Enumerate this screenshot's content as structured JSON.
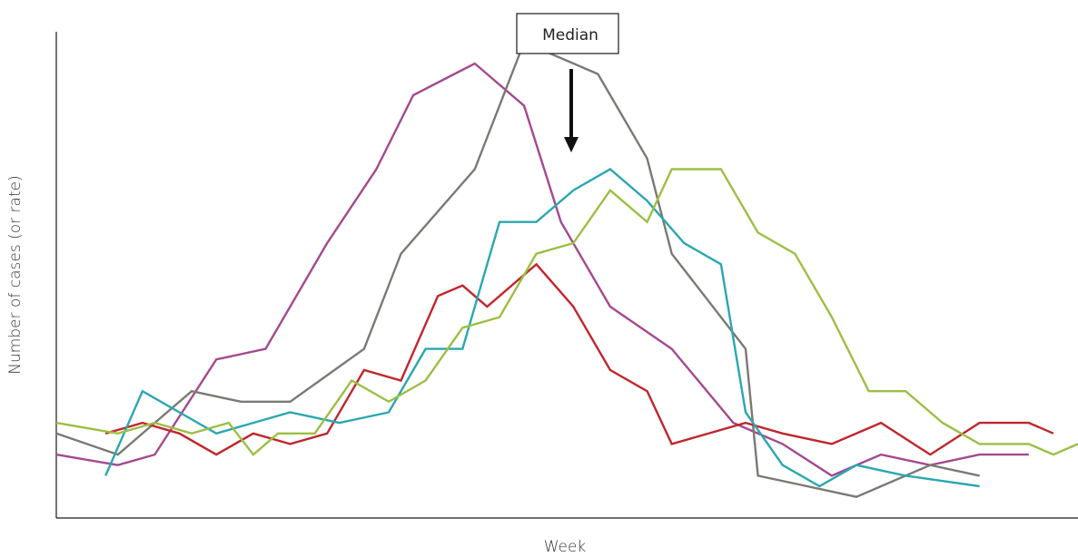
{
  "chart_data": {
    "type": "line",
    "title": "",
    "xlabel": "Week",
    "ylabel": "Number of cases (or rate)",
    "legend": "none",
    "grid": false,
    "x_ticks_shown": false,
    "y_ticks_shown": false,
    "ylim": [
      0,
      46
    ],
    "x": [
      1,
      2,
      3,
      4,
      5,
      6,
      7,
      8,
      9,
      10,
      11,
      12,
      13,
      14,
      15,
      16,
      17,
      18,
      19,
      20,
      21,
      22,
      23,
      24,
      25,
      26,
      27,
      28,
      29,
      30,
      31,
      32,
      33,
      34,
      35,
      36,
      37,
      38,
      39,
      40,
      41,
      42,
      43,
      44,
      45,
      46,
      47,
      48,
      49,
      50,
      51,
      52,
      53,
      54,
      55,
      56,
      57,
      58,
      59,
      60,
      61,
      62,
      63,
      64,
      65,
      66,
      67,
      68,
      69,
      70
    ],
    "annotations": [
      {
        "text": "Median",
        "points_to": {
          "series_index": 1,
          "x": 36
        }
      }
    ],
    "series": [
      {
        "color": "#a3498f",
        "points": [
          [
            1,
            6
          ],
          [
            6,
            5
          ],
          [
            9,
            6
          ],
          [
            14,
            15
          ],
          [
            18,
            16
          ],
          [
            23,
            26
          ],
          [
            27,
            33
          ],
          [
            30,
            40
          ],
          [
            35,
            43
          ],
          [
            39,
            39
          ],
          [
            42,
            28
          ],
          [
            46,
            20
          ],
          [
            51,
            16
          ],
          [
            56,
            9
          ],
          [
            60,
            7
          ],
          [
            64,
            4
          ],
          [
            68,
            6
          ],
          [
            72,
            5
          ],
          [
            76,
            6
          ],
          [
            80,
            6
          ]
        ]
      },
      {
        "color": "#7a7a72",
        "points": [
          [
            1,
            8
          ],
          [
            6,
            6
          ],
          [
            9,
            9
          ],
          [
            12,
            12
          ],
          [
            16,
            11
          ],
          [
            20,
            11
          ],
          [
            26,
            16
          ],
          [
            29,
            25
          ],
          [
            35,
            33
          ],
          [
            39,
            45
          ],
          [
            45,
            42
          ],
          [
            49,
            34
          ],
          [
            51,
            25
          ],
          [
            57,
            16
          ],
          [
            58,
            4
          ],
          [
            62,
            3
          ],
          [
            66,
            2
          ],
          [
            72,
            5
          ],
          [
            76,
            4
          ]
        ]
      },
      {
        "color": "#c0262c",
        "points": [
          [
            5,
            8
          ],
          [
            8,
            9
          ],
          [
            11,
            8
          ],
          [
            14,
            6
          ],
          [
            17,
            8
          ],
          [
            20,
            7
          ],
          [
            23,
            8
          ],
          [
            26,
            14
          ],
          [
            29,
            13
          ],
          [
            32,
            21
          ],
          [
            34,
            22
          ],
          [
            36,
            20
          ],
          [
            40,
            24
          ],
          [
            43,
            20
          ],
          [
            46,
            14
          ],
          [
            49,
            12
          ],
          [
            51,
            7
          ],
          [
            57,
            9
          ],
          [
            60,
            8
          ],
          [
            64,
            7
          ],
          [
            68,
            9
          ],
          [
            72,
            6
          ],
          [
            76,
            9
          ],
          [
            80,
            9
          ],
          [
            82,
            8
          ]
        ]
      },
      {
        "color": "#2aa7b1",
        "points": [
          [
            5,
            4
          ],
          [
            8,
            12
          ],
          [
            11,
            10
          ],
          [
            14,
            8
          ],
          [
            17,
            9
          ],
          [
            20,
            10
          ],
          [
            24,
            9
          ],
          [
            28,
            10
          ],
          [
            31,
            16
          ],
          [
            34,
            16
          ],
          [
            37,
            28
          ],
          [
            40,
            28
          ],
          [
            43,
            31
          ],
          [
            46,
            33
          ],
          [
            49,
            30
          ],
          [
            52,
            26
          ],
          [
            55,
            24
          ],
          [
            57,
            10
          ],
          [
            60,
            5
          ],
          [
            63,
            3
          ],
          [
            66,
            5
          ],
          [
            70,
            4
          ],
          [
            76,
            3
          ]
        ]
      },
      {
        "color": "#9cbf45",
        "points": [
          [
            1,
            9
          ],
          [
            6,
            8
          ],
          [
            9,
            9
          ],
          [
            12,
            8
          ],
          [
            15,
            9
          ],
          [
            17,
            6
          ],
          [
            19,
            8
          ],
          [
            22,
            8
          ],
          [
            25,
            13
          ],
          [
            28,
            11
          ],
          [
            31,
            13
          ],
          [
            34,
            18
          ],
          [
            37,
            19
          ],
          [
            40,
            25
          ],
          [
            43,
            26
          ],
          [
            46,
            31
          ],
          [
            49,
            28
          ],
          [
            51,
            33
          ],
          [
            55,
            33
          ],
          [
            58,
            27
          ],
          [
            61,
            25
          ],
          [
            64,
            19
          ],
          [
            67,
            12
          ],
          [
            70,
            12
          ],
          [
            73,
            9
          ],
          [
            76,
            7
          ],
          [
            80,
            7
          ],
          [
            82,
            6
          ],
          [
            84,
            7
          ]
        ]
      }
    ]
  }
}
